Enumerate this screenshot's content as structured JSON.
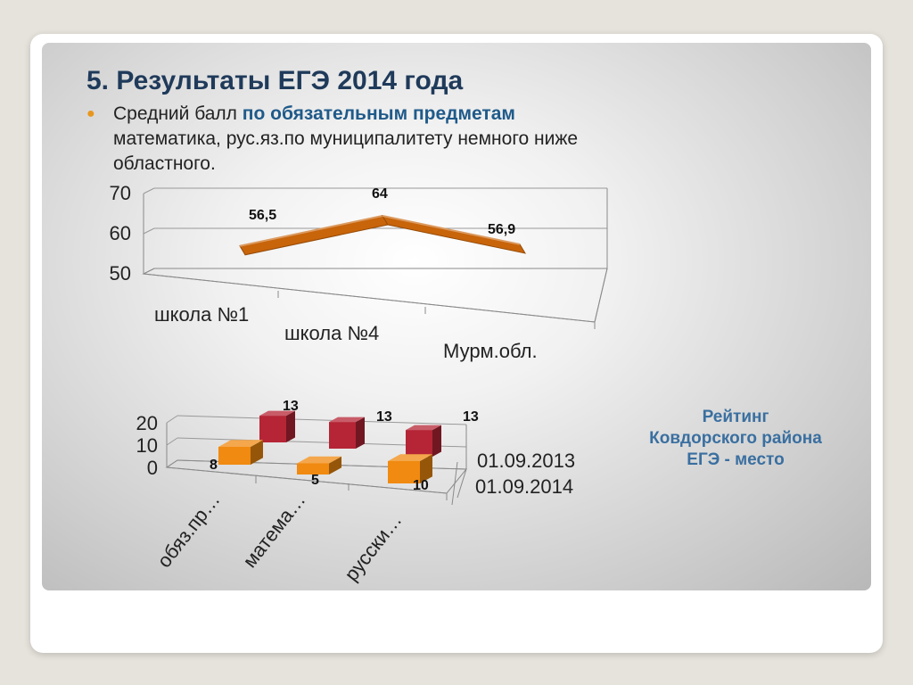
{
  "slide": {
    "title": "5. Результаты ЕГЭ 2014 года",
    "bullet_start": "Средний балл ",
    "bullet_highlight": "по обязательным предметам",
    "bullet_rest": " математика, рус.яз.по муниципалитету немного ниже областного.",
    "rating_lines": [
      "Рейтинг",
      "Ковдорского района",
      "ЕГЭ - место"
    ]
  },
  "colors": {
    "line_series": "#c8640a",
    "series_2013": "#b52535",
    "series_2014": "#f08a10",
    "title": "#1f3a5a",
    "accent_text": "#3a6fa0"
  },
  "chart_data": [
    {
      "type": "line",
      "categories": [
        "школа №1",
        "школа №4",
        "Мурм.обл."
      ],
      "values": [
        56.5,
        64,
        56.9
      ],
      "data_labels": [
        "56,5",
        "64",
        "56,9"
      ],
      "ylim": [
        50,
        70
      ],
      "yticks": [
        50,
        60,
        70
      ],
      "title": "",
      "xlabel": "",
      "ylabel": "",
      "style": "3d-ribbon"
    },
    {
      "type": "bar",
      "style": "3d-column",
      "categories": [
        "обяз.пр…",
        "матема…",
        "русски…"
      ],
      "ylim": [
        0,
        20
      ],
      "yticks": [
        0,
        10,
        20
      ],
      "series": [
        {
          "name": "01.09.2013",
          "values": [
            13,
            13,
            13
          ],
          "data_labels": [
            "13",
            "13",
            "13"
          ]
        },
        {
          "name": "01.09.2014",
          "values": [
            8,
            5,
            10
          ],
          "data_labels": [
            "8",
            "5",
            "10"
          ]
        }
      ],
      "title": "",
      "xlabel": "",
      "ylabel": ""
    }
  ]
}
